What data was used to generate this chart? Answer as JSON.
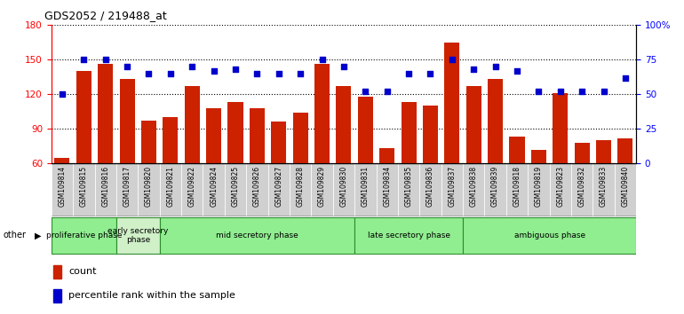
{
  "title": "GDS2052 / 219488_at",
  "samples": [
    "GSM109814",
    "GSM109815",
    "GSM109816",
    "GSM109817",
    "GSM109820",
    "GSM109821",
    "GSM109822",
    "GSM109824",
    "GSM109825",
    "GSM109826",
    "GSM109827",
    "GSM109828",
    "GSM109829",
    "GSM109830",
    "GSM109831",
    "GSM109834",
    "GSM109835",
    "GSM109836",
    "GSM109837",
    "GSM109838",
    "GSM109839",
    "GSM109818",
    "GSM109819",
    "GSM109823",
    "GSM109832",
    "GSM109833",
    "GSM109840"
  ],
  "counts": [
    65,
    140,
    146,
    133,
    97,
    100,
    127,
    108,
    113,
    108,
    96,
    104,
    146,
    127,
    118,
    73,
    113,
    110,
    165,
    127,
    133,
    83,
    72,
    121,
    78,
    80,
    82
  ],
  "percentiles": [
    50,
    75,
    75,
    70,
    65,
    65,
    70,
    67,
    68,
    65,
    65,
    65,
    75,
    70,
    52,
    52,
    65,
    65,
    75,
    68,
    70,
    67,
    52,
    52,
    52,
    52,
    62
  ],
  "phases": [
    {
      "label": "proliferative phase",
      "start": 0,
      "end": 3,
      "color": "#90EE90"
    },
    {
      "label": "early secretory\nphase",
      "start": 3,
      "end": 5,
      "color": "#d8f5d0"
    },
    {
      "label": "mid secretory phase",
      "start": 5,
      "end": 14,
      "color": "#90EE90"
    },
    {
      "label": "late secretory phase",
      "start": 14,
      "end": 19,
      "color": "#90EE90"
    },
    {
      "label": "ambiguous phase",
      "start": 19,
      "end": 27,
      "color": "#90EE90"
    }
  ],
  "ylim_left": [
    60,
    180
  ],
  "ylim_right": [
    0,
    100
  ],
  "yticks_left": [
    60,
    90,
    120,
    150,
    180
  ],
  "yticks_right": [
    0,
    25,
    50,
    75,
    100
  ],
  "bar_color": "#cc2200",
  "dot_color": "#0000cc",
  "plot_bg": "#ffffff",
  "cell_bg": "#d0d0d0"
}
